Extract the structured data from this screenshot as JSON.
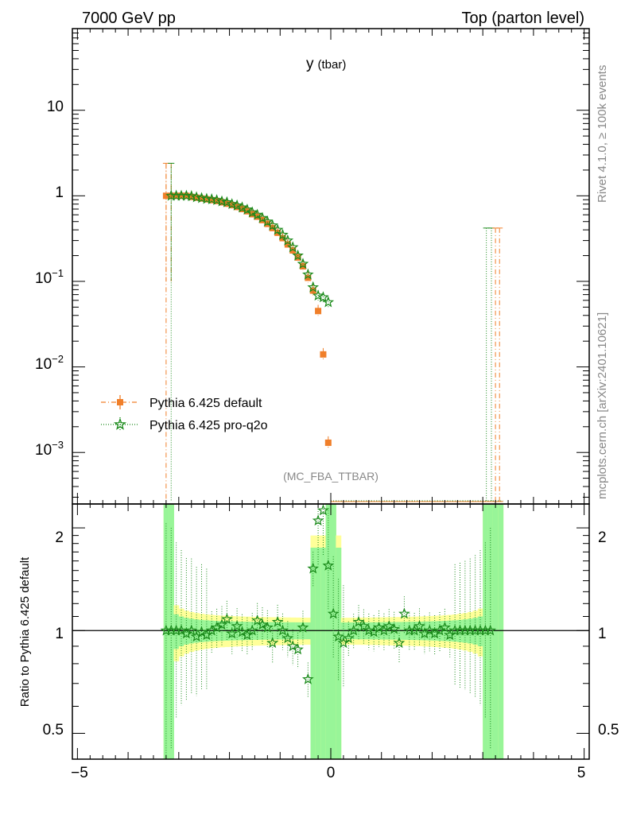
{
  "header": {
    "energy_label": "7000 GeV pp",
    "process_label": "Top (parton level)"
  },
  "plot_title": {
    "main": "y",
    "sub": "(tbar)"
  },
  "side_labels": {
    "rivet": "Rivet 4.1.0, ≥ 100k events",
    "mcplots": "mcplots.cern.ch [arXiv:2401.10621]"
  },
  "analysis_label": "(MC_FBA_TTBAR)",
  "legend": [
    {
      "label": "Pythia 6.425 default",
      "color": "#f07f2a",
      "marker": "square",
      "line": "dashdot"
    },
    {
      "label": "Pythia 6.425 pro-q2o",
      "color": "#1a8a1a",
      "marker": "star",
      "line": "dotted"
    }
  ],
  "colors": {
    "default": "#f07f2a",
    "proq2o": "#1a8a1a",
    "band_stat": "#98f598",
    "band_outer": "#ffff99"
  },
  "chart_data": [
    {
      "type": "line",
      "name": "main",
      "title": "y (tbar)",
      "xlabel": "",
      "ylabel": "",
      "xscale": "linear",
      "yscale": "log",
      "xlim": [
        -5.1,
        5.1
      ],
      "ylim": [
        0.00025,
        90
      ],
      "y_tick_labels": [
        "10^-3",
        "10^-2",
        "10^-1",
        "1",
        "10"
      ],
      "series": [
        {
          "name": "Pythia 6.425 default",
          "x": [
            -3.25,
            -3.15,
            -3.05,
            -2.95,
            -2.85,
            -2.75,
            -2.65,
            -2.55,
            -2.45,
            -2.35,
            -2.25,
            -2.15,
            -2.05,
            -1.95,
            -1.85,
            -1.75,
            -1.65,
            -1.55,
            -1.45,
            -1.35,
            -1.25,
            -1.15,
            -1.05,
            -0.95,
            -0.85,
            -0.75,
            -0.65,
            -0.55,
            -0.45,
            -0.35,
            -0.25,
            -0.15,
            -0.05
          ],
          "values": [
            1.0,
            1.0,
            1.0,
            1.0,
            1.0,
            0.97,
            0.95,
            0.93,
            0.91,
            0.89,
            0.87,
            0.84,
            0.81,
            0.78,
            0.74,
            0.7,
            0.66,
            0.61,
            0.57,
            0.52,
            0.47,
            0.42,
            0.37,
            0.32,
            0.27,
            0.23,
            0.19,
            0.15,
            0.11,
            0.078,
            0.045,
            0.014,
            0.0013
          ]
        },
        {
          "name": "Pythia 6.425 pro-q2o",
          "x": [
            -3.15,
            -3.05,
            -2.95,
            -2.85,
            -2.75,
            -2.65,
            -2.55,
            -2.45,
            -2.35,
            -2.25,
            -2.15,
            -2.05,
            -1.95,
            -1.85,
            -1.75,
            -1.65,
            -1.55,
            -1.45,
            -1.35,
            -1.25,
            -1.15,
            -1.05,
            -0.95,
            -0.85,
            -0.75,
            -0.65,
            -0.55,
            -0.45,
            -0.35,
            -0.25,
            -0.15,
            -0.05
          ],
          "values": [
            1.0,
            1.0,
            1.0,
            1.0,
            0.99,
            0.96,
            0.94,
            0.92,
            0.91,
            0.89,
            0.86,
            0.84,
            0.8,
            0.77,
            0.73,
            0.69,
            0.64,
            0.6,
            0.55,
            0.5,
            0.45,
            0.4,
            0.35,
            0.3,
            0.25,
            0.2,
            0.16,
            0.12,
            0.085,
            0.068,
            0.065,
            0.057
          ]
        }
      ]
    },
    {
      "type": "line",
      "name": "ratio",
      "xlabel": "",
      "ylabel": "Ratio to Pythia 6.425 default",
      "xscale": "linear",
      "yscale": "log",
      "xlim": [
        -5.1,
        5.1
      ],
      "ylim": [
        0.42,
        2.35
      ],
      "x_tick_labels": [
        "−5",
        "0",
        "5"
      ],
      "y_tick_labels": [
        "0.5",
        "1",
        "2"
      ],
      "reference": 1.0,
      "series": [
        {
          "name": "Pythia 6.425 pro-q2o",
          "x": [
            -3.25,
            -3.15,
            -3.05,
            -2.95,
            -2.85,
            -2.75,
            -2.65,
            -2.55,
            -2.45,
            -2.35,
            -2.25,
            -2.15,
            -2.05,
            -1.95,
            -1.85,
            -1.75,
            -1.65,
            -1.55,
            -1.45,
            -1.35,
            -1.25,
            -1.15,
            -1.05,
            -0.95,
            -0.85,
            -0.75,
            -0.65,
            -0.55,
            -0.45,
            -0.35,
            -0.25,
            -0.15,
            -0.05,
            0.05,
            0.15,
            0.25,
            0.35,
            0.45,
            0.55,
            0.65,
            0.75,
            0.85,
            0.95,
            1.05,
            1.15,
            1.25,
            1.35,
            1.45,
            1.55,
            1.65,
            1.75,
            1.85,
            1.95,
            2.05,
            2.15,
            2.25,
            2.35,
            2.45,
            2.55,
            2.65,
            2.75,
            2.85,
            2.95,
            3.05,
            3.15
          ],
          "values": [
            1.0,
            1.0,
            1.0,
            1.0,
            0.98,
            1.0,
            0.96,
            0.99,
            0.97,
            1.0,
            1.02,
            1.04,
            1.08,
            0.98,
            1.03,
            0.99,
            0.97,
            1.0,
            1.07,
            1.04,
            1.02,
            0.92,
            1.06,
            1.0,
            0.95,
            0.9,
            0.88,
            1.02,
            0.72,
            1.52,
            2.1,
            2.25,
            1.55,
            1.12,
            0.96,
            0.92,
            0.95,
            1.0,
            1.06,
            1.03,
            1.0,
            0.99,
            1.02,
            1.0,
            1.03,
            1.01,
            0.92,
            1.12,
            1.0,
            1.0,
            1.03,
            0.98,
            1.0,
            0.98,
            1.0,
            1.02,
            0.97,
            1.0,
            1.0,
            1.0,
            1.0,
            1.0,
            1.0,
            1.0,
            1.0
          ]
        }
      ]
    }
  ]
}
